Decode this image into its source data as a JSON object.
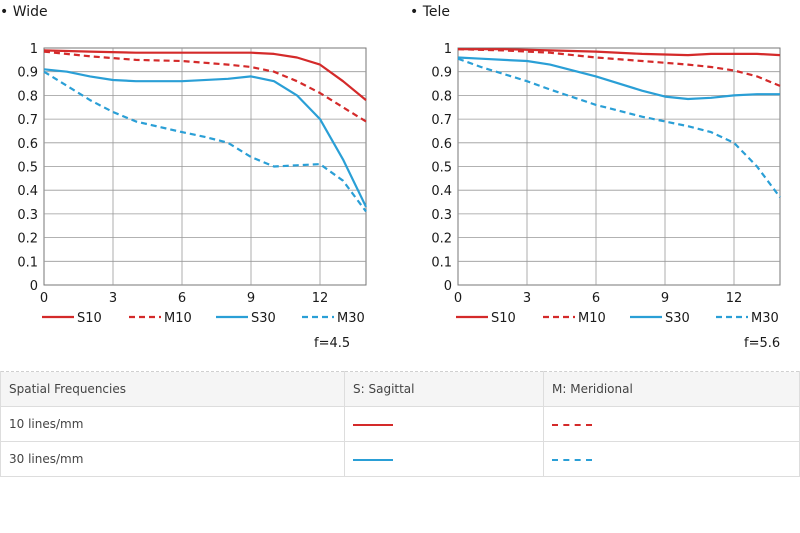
{
  "chart_data": [
    {
      "type": "line",
      "title": "• Wide",
      "xlim": [
        0,
        14
      ],
      "ylim": [
        0,
        1
      ],
      "x_ticks": [
        "0",
        "3",
        "6",
        "9",
        "12"
      ],
      "y_ticks": [
        "0",
        "0.1",
        "0.2",
        "0.3",
        "0.4",
        "0.5",
        "0.6",
        "0.7",
        "0.8",
        "0.9",
        "1"
      ],
      "grid": true,
      "legend_position": "bottom",
      "aperture": "f=4.5",
      "series": [
        {
          "name": "S10",
          "style": "solid",
          "color": "#d42a2a",
          "x": [
            0,
            2,
            4,
            6,
            8,
            9,
            10,
            11,
            12,
            13,
            14
          ],
          "y": [
            0.99,
            0.985,
            0.98,
            0.98,
            0.98,
            0.98,
            0.975,
            0.96,
            0.93,
            0.86,
            0.78
          ]
        },
        {
          "name": "M10",
          "style": "dashed",
          "color": "#d42a2a",
          "x": [
            0,
            2,
            4,
            6,
            8,
            9,
            10,
            11,
            12,
            13,
            14
          ],
          "y": [
            0.985,
            0.965,
            0.95,
            0.945,
            0.93,
            0.92,
            0.9,
            0.86,
            0.81,
            0.75,
            0.69
          ]
        },
        {
          "name": "S30",
          "style": "solid",
          "color": "#2a9fd6",
          "x": [
            0,
            1,
            2,
            3,
            4,
            6,
            8,
            9,
            10,
            11,
            12,
            13,
            14
          ],
          "y": [
            0.91,
            0.9,
            0.88,
            0.865,
            0.86,
            0.86,
            0.87,
            0.88,
            0.86,
            0.8,
            0.7,
            0.53,
            0.33
          ]
        },
        {
          "name": "M30",
          "style": "dashed",
          "color": "#2a9fd6",
          "x": [
            0,
            1,
            2,
            3,
            4,
            6,
            7,
            8,
            9,
            10,
            11,
            12,
            13,
            14
          ],
          "y": [
            0.9,
            0.84,
            0.78,
            0.73,
            0.69,
            0.645,
            0.625,
            0.6,
            0.54,
            0.5,
            0.505,
            0.51,
            0.44,
            0.31
          ]
        }
      ]
    },
    {
      "type": "line",
      "title": "• Tele",
      "xlim": [
        0,
        14
      ],
      "ylim": [
        0,
        1
      ],
      "x_ticks": [
        "0",
        "3",
        "6",
        "9",
        "12"
      ],
      "y_ticks": [
        "0",
        "0.1",
        "0.2",
        "0.3",
        "0.4",
        "0.5",
        "0.6",
        "0.7",
        "0.8",
        "0.9",
        "1"
      ],
      "grid": true,
      "legend_position": "bottom",
      "aperture": "f=5.6",
      "series": [
        {
          "name": "S10",
          "style": "solid",
          "color": "#d42a2a",
          "x": [
            0,
            2,
            4,
            6,
            8,
            10,
            11,
            12,
            13,
            14
          ],
          "y": [
            0.995,
            0.995,
            0.99,
            0.985,
            0.975,
            0.97,
            0.975,
            0.975,
            0.975,
            0.97
          ]
        },
        {
          "name": "M10",
          "style": "dashed",
          "color": "#d42a2a",
          "x": [
            0,
            2,
            4,
            6,
            8,
            10,
            11,
            12,
            13,
            14
          ],
          "y": [
            0.995,
            0.99,
            0.98,
            0.96,
            0.945,
            0.93,
            0.92,
            0.905,
            0.88,
            0.84
          ]
        },
        {
          "name": "S30",
          "style": "solid",
          "color": "#2a9fd6",
          "x": [
            0,
            1,
            2,
            3,
            4,
            6,
            8,
            9,
            10,
            11,
            12,
            13,
            14
          ],
          "y": [
            0.96,
            0.955,
            0.95,
            0.945,
            0.93,
            0.88,
            0.82,
            0.795,
            0.785,
            0.79,
            0.8,
            0.805,
            0.805
          ]
        },
        {
          "name": "M30",
          "style": "dashed",
          "color": "#2a9fd6",
          "x": [
            0,
            1,
            2,
            3,
            4,
            6,
            8,
            10,
            11,
            12,
            13,
            14
          ],
          "y": [
            0.955,
            0.92,
            0.89,
            0.86,
            0.825,
            0.76,
            0.71,
            0.67,
            0.645,
            0.6,
            0.5,
            0.37
          ]
        }
      ]
    }
  ],
  "table": {
    "headers": [
      "Spatial Frequencies",
      "S: Sagittal",
      "M: Meridional"
    ],
    "rows": [
      {
        "label": "10 lines/mm",
        "color": "#d42a2a"
      },
      {
        "label": "30 lines/mm",
        "color": "#2a9fd6"
      }
    ]
  }
}
